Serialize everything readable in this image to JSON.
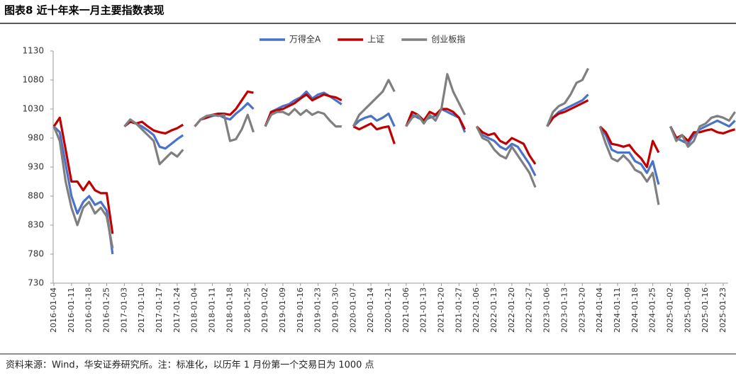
{
  "chart_data": {
    "type": "line",
    "title": "图表8  近十年来一月主要指数表现",
    "footnote": "资料来源：Wind，华安证券研究所。注：标准化，以历年 1 月份第一个交易日为 1000 点",
    "categories": [
      "2016-01-04",
      null,
      null,
      "2016-01-11",
      null,
      null,
      "2016-01-18",
      null,
      null,
      "2016-01-25",
      null,
      null,
      "2017-01-03",
      null,
      null,
      "2017-01-10",
      null,
      null,
      "2017-01-17",
      null,
      null,
      "2017-01-24",
      null,
      null,
      "2018-01-04",
      null,
      null,
      "2018-01-11",
      null,
      null,
      "2018-01-18",
      null,
      null,
      "2018-01-25",
      null,
      null,
      "2019-01-02",
      null,
      null,
      "2019-01-09",
      null,
      null,
      "2019-01-16",
      null,
      null,
      "2019-01-23",
      null,
      null,
      "2019-01-30",
      null,
      null,
      "2020-01-07",
      null,
      null,
      "2020-01-14",
      null,
      null,
      "2020-01-21",
      null,
      null,
      "2021-01-06",
      null,
      null,
      "2021-01-13",
      null,
      null,
      "2021-01-20",
      null,
      null,
      "2021-01-27",
      null,
      null,
      "2022-01-06",
      null,
      null,
      "2022-01-13",
      null,
      null,
      "2022-01-20",
      null,
      null,
      "2022-01-27",
      null,
      null,
      "2023-01-06",
      null,
      null,
      "2023-01-13",
      null,
      null,
      "2023-01-20",
      null,
      null,
      "2024-01-04",
      null,
      null,
      "2024-01-11",
      null,
      null,
      "2024-01-18",
      null,
      null,
      "2024-01-25",
      null,
      null,
      "2025-01-02",
      null,
      null,
      "2025-01-09",
      null,
      null,
      "2025-01-16",
      null,
      null,
      "2025-01-23",
      null,
      null
    ],
    "series": [
      {
        "name": "万得全A",
        "color": "#4a72c8",
        "values": [
          1000,
          990,
          935,
          880,
          850,
          870,
          880,
          865,
          870,
          855,
          780,
          null,
          1000,
          1008,
          1005,
          1000,
          993,
          985,
          965,
          962,
          970,
          978,
          985,
          null,
          1000,
          1012,
          1015,
          1018,
          1020,
          1015,
          1012,
          1022,
          1030,
          1040,
          1030,
          null,
          1000,
          1025,
          1030,
          1035,
          1038,
          1045,
          1050,
          1060,
          1048,
          1055,
          1058,
          1052,
          1045,
          1038,
          null,
          1000,
          1010,
          1015,
          1018,
          1010,
          1015,
          1022,
          1000,
          null,
          1000,
          1020,
          1015,
          1010,
          1015,
          1018,
          1030,
          1025,
          1020,
          1015,
          990,
          null,
          1000,
          985,
          980,
          975,
          965,
          960,
          970,
          965,
          950,
          935,
          915,
          null,
          1000,
          1015,
          1025,
          1030,
          1035,
          1040,
          1045,
          1055,
          null,
          1000,
          985,
          960,
          955,
          955,
          955,
          940,
          935,
          920,
          940,
          900,
          null,
          1000,
          980,
          975,
          970,
          985,
          995,
          1000,
          1005,
          1010,
          1005,
          1000,
          1010
        ]
      },
      {
        "name": "上证",
        "color": "#c00000",
        "values": [
          1000,
          1015,
          960,
          905,
          905,
          890,
          905,
          890,
          885,
          885,
          815,
          null,
          1000,
          1008,
          1005,
          1008,
          1000,
          993,
          990,
          988,
          993,
          997,
          1003,
          null,
          1000,
          1012,
          1015,
          1020,
          1022,
          1022,
          1020,
          1030,
          1045,
          1060,
          1058,
          null,
          1000,
          1025,
          1028,
          1030,
          1035,
          1040,
          1048,
          1055,
          1045,
          1050,
          1055,
          1052,
          1050,
          1045,
          null,
          1000,
          995,
          1000,
          1005,
          995,
          998,
          1000,
          970,
          null,
          1000,
          1025,
          1020,
          1010,
          1025,
          1020,
          1030,
          1030,
          1025,
          1015,
          995,
          null,
          1000,
          990,
          985,
          988,
          975,
          970,
          980,
          975,
          970,
          950,
          935,
          null,
          1000,
          1015,
          1022,
          1025,
          1030,
          1035,
          1040,
          1045,
          null,
          1000,
          990,
          970,
          968,
          965,
          968,
          955,
          945,
          930,
          975,
          955,
          null,
          1000,
          980,
          985,
          975,
          990,
          990,
          993,
          995,
          990,
          988,
          992,
          995
        ]
      },
      {
        "name": "创业板指",
        "color": "#7f7f7f",
        "values": [
          1000,
          975,
          905,
          860,
          830,
          860,
          870,
          850,
          860,
          845,
          790,
          null,
          1000,
          1012,
          1005,
          995,
          985,
          975,
          935,
          945,
          955,
          948,
          960,
          null,
          1000,
          1012,
          1018,
          1020,
          1018,
          1020,
          975,
          978,
          995,
          1020,
          990,
          null,
          1000,
          1020,
          1025,
          1025,
          1020,
          1030,
          1020,
          1028,
          1020,
          1025,
          1022,
          1010,
          1000,
          1000,
          null,
          1000,
          1020,
          1030,
          1040,
          1050,
          1060,
          1080,
          1060,
          null,
          1000,
          1015,
          1020,
          1005,
          1020,
          1010,
          1030,
          1090,
          1060,
          1040,
          1020,
          null,
          1000,
          980,
          975,
          960,
          950,
          945,
          965,
          950,
          935,
          920,
          895,
          null,
          1000,
          1025,
          1035,
          1040,
          1055,
          1075,
          1080,
          1100,
          null,
          1000,
          970,
          945,
          940,
          950,
          940,
          925,
          920,
          905,
          920,
          865,
          null,
          1000,
          975,
          985,
          965,
          975,
          1000,
          1005,
          1015,
          1018,
          1015,
          1010,
          1025
        ]
      }
    ],
    "ylim": [
      730,
      1130
    ],
    "yticks": [
      730,
      780,
      830,
      880,
      930,
      980,
      1030,
      1080,
      1130
    ],
    "legend": "top"
  }
}
